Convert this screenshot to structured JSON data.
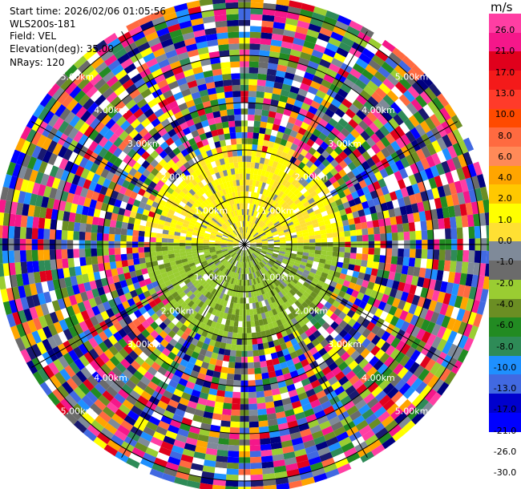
{
  "header": {
    "start_time": "Start time: 2026/02/06 01:05:56",
    "instrument": "WLS200s-181",
    "field": "Field: VEL",
    "elevation": "Elevation(deg): 35.00",
    "nrays": "NRays: 120"
  },
  "colorbar": {
    "unit": "m/s",
    "ticks": [
      "26.0",
      "21.0",
      "17.0",
      "13.0",
      "10.0",
      "8.0",
      "6.0",
      "4.0",
      "2.0",
      "1.0",
      "0.0",
      "-1.0",
      "-2.0",
      "-4.0",
      "-6.0",
      "-8.0",
      "-10.0",
      "-13.0",
      "-17.0",
      "-21.0",
      "-26.0",
      "-30.0"
    ],
    "colors": [
      "#ff3ea3",
      "#f5178a",
      "#e0001c",
      "#f41a1a",
      "#ff3b2a",
      "#ff4a00",
      "#ff6a40",
      "#ff8a58",
      "#ffa500",
      "#ffc800",
      "#ffff00",
      "#ffe033",
      "#7f8a99",
      "#6b6b6b",
      "#9acd32",
      "#6b8e23",
      "#228b22",
      "#2e8b57",
      "#1e90ff",
      "#4169e1",
      "#0000cd",
      "#0000ff",
      "#000080",
      "#191970"
    ]
  },
  "chart_data": {
    "type": "ppi",
    "field": "VEL",
    "units": "m/s",
    "elevation_deg": 35.0,
    "nrays": 120,
    "range_rings_km": [
      1.0,
      2.0,
      3.0,
      4.0,
      5.0
    ],
    "range_ring_labels": [
      "1.00km",
      "2.00km",
      "3.00km",
      "4.00km",
      "5.00km"
    ],
    "max_range_km": 5.2,
    "near_field": {
      "max_range_km": 2.1,
      "north_half_values": [
        0.0,
        1.0,
        2.0
      ],
      "south_half_values": [
        -1.0,
        -2.0,
        -4.0
      ]
    },
    "far_field": "noise"
  }
}
